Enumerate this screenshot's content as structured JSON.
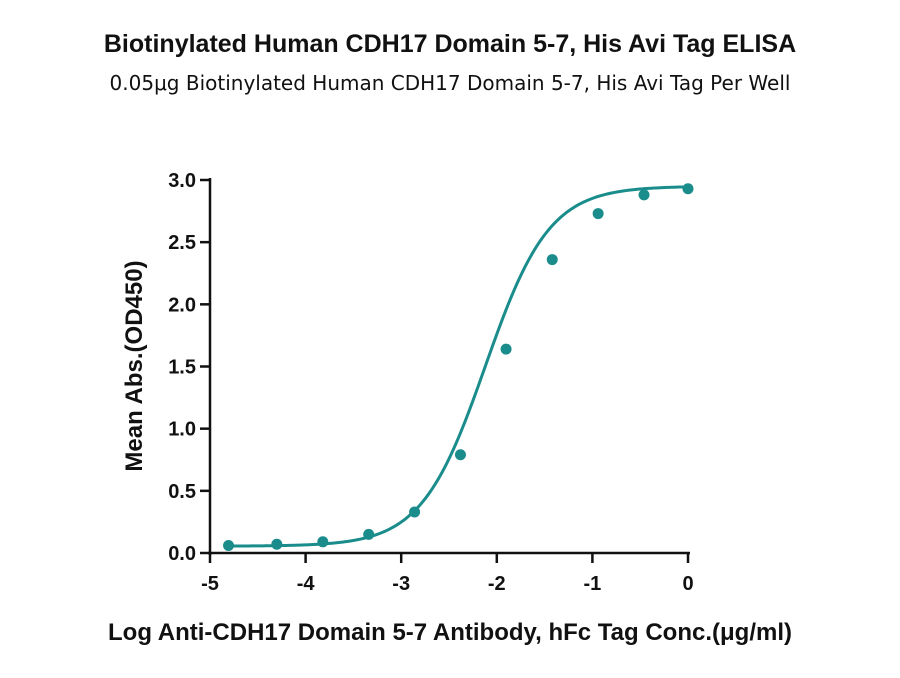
{
  "chart_data": {
    "type": "line",
    "title": "Biotinylated Human CDH17 Domain 5-7, His Avi Tag ELISA",
    "subtitle": "0.05μg Biotinylated Human CDH17 Domain 5-7, His Avi Tag Per Well",
    "xlabel": "Log Anti-CDH17 Domain 5-7 Antibody, hFc Tag Conc.(μg/ml)",
    "ylabel": "Mean Abs.(OD450)",
    "xlim": [
      -5,
      0
    ],
    "ylim": [
      0,
      3.0
    ],
    "x_ticks": [
      -5,
      -4,
      -3,
      -2,
      -1,
      0
    ],
    "y_ticks": [
      0.0,
      0.5,
      1.0,
      1.5,
      2.0,
      2.5,
      3.0
    ],
    "x_tick_labels": [
      "-5",
      "-4",
      "-3",
      "-2",
      "-1",
      "0"
    ],
    "y_tick_labels": [
      "0.0",
      "0.5",
      "1.0",
      "1.5",
      "2.0",
      "2.5",
      "3.0"
    ],
    "grid": false,
    "legend": "none",
    "series": [
      {
        "color": "#1a8c8c",
        "x": [
          -4.806,
          -4.301,
          -3.82,
          -3.34,
          -2.86,
          -2.38,
          -1.903,
          -1.42,
          -0.94,
          -0.46,
          0.0
        ],
        "y": [
          0.06,
          0.07,
          0.09,
          0.15,
          0.33,
          0.79,
          1.64,
          2.36,
          2.73,
          2.88,
          2.93
        ]
      }
    ],
    "fit_curve": {
      "model": "4PL",
      "bottom": 0.055,
      "top": 2.95,
      "log_ec50": -2.12,
      "hill_slope": 1.3
    }
  }
}
